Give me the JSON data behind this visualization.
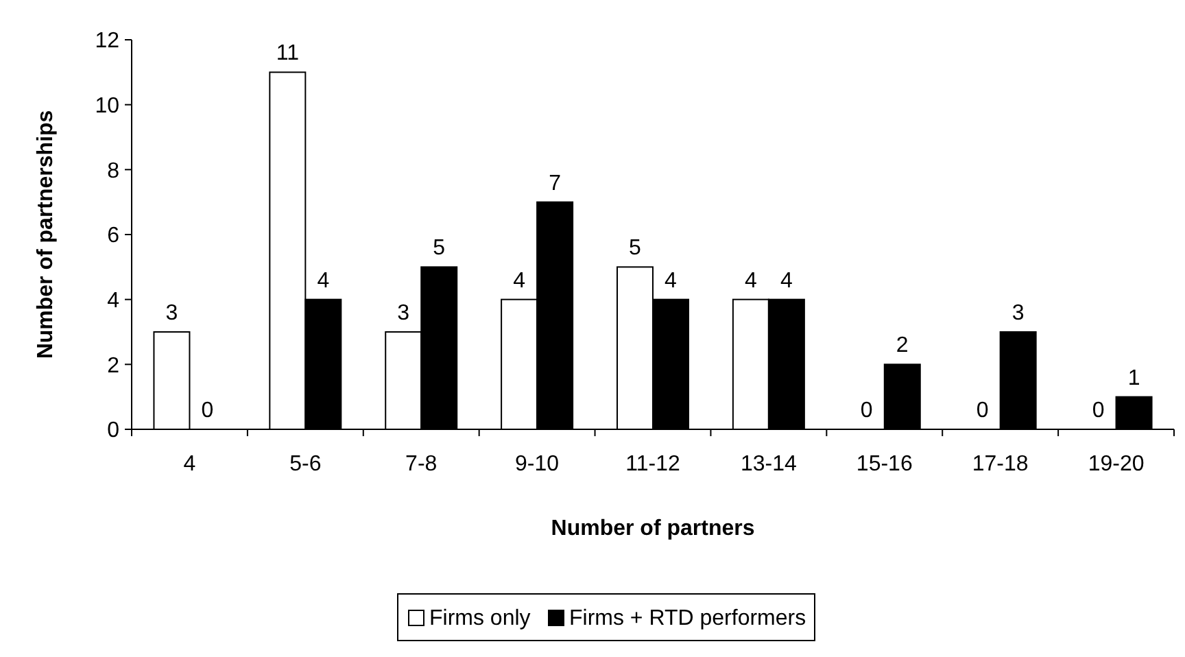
{
  "chart_data": {
    "type": "bar",
    "xlabel": "Number of partners",
    "ylabel": "Number of partnerships",
    "categories": [
      "4",
      "5-6",
      "7-8",
      "9-10",
      "11-12",
      "13-14",
      "15-16",
      "17-18",
      "19-20"
    ],
    "series": [
      {
        "name": "Firms only",
        "color": "#ffffff",
        "values": [
          3,
          11,
          3,
          4,
          5,
          4,
          0,
          0,
          0
        ]
      },
      {
        "name": "Firms + RTD performers",
        "color": "#000000",
        "values": [
          0,
          4,
          5,
          7,
          4,
          4,
          2,
          3,
          1
        ]
      }
    ],
    "ylim": [
      0,
      12
    ],
    "yticks": [
      0,
      2,
      4,
      6,
      8,
      10,
      12
    ],
    "grid": false,
    "legend": "bottom",
    "data_labels": true
  }
}
